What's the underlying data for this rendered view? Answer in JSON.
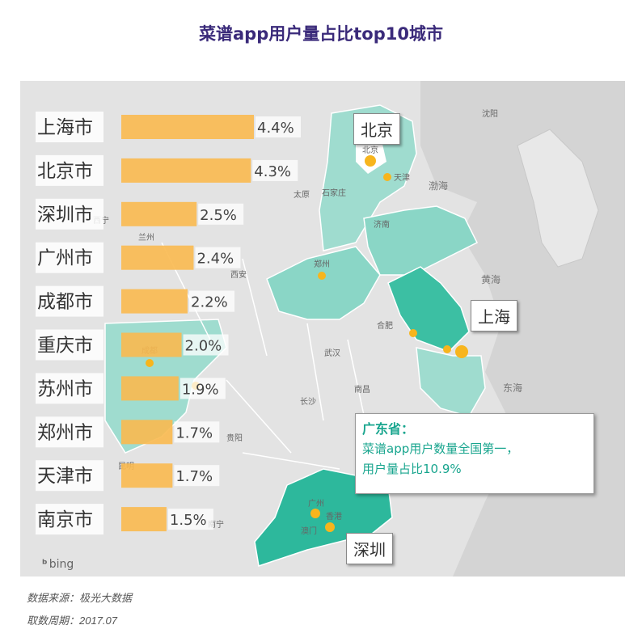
{
  "title": "菜谱app用户量占比top10城市",
  "chart_data": {
    "type": "bar",
    "orientation": "horizontal",
    "title": "菜谱app用户量占比top10城市",
    "categories": [
      "上海市",
      "北京市",
      "深圳市",
      "广州市",
      "成都市",
      "重庆市",
      "苏州市",
      "郑州市",
      "天津市",
      "南京市"
    ],
    "values": [
      4.4,
      4.3,
      2.5,
      2.4,
      2.2,
      2.0,
      1.9,
      1.7,
      1.7,
      1.5
    ],
    "value_labels": [
      "4.4%",
      "4.3%",
      "2.5%",
      "2.4%",
      "2.2%",
      "2.0%",
      "1.9%",
      "1.7%",
      "1.7%",
      "1.5%"
    ],
    "unit": "%",
    "bar_color": "#f9b94f"
  },
  "map": {
    "callouts": {
      "beijing": "北京",
      "shanghai": "上海",
      "shenzhen": "深圳"
    },
    "labels": {
      "beijing_small": "北京",
      "tianjin": "天津",
      "shijiazhuang": "石家庄",
      "taiyuan": "太原",
      "jinan": "济南",
      "zhengzhou": "郑州",
      "hefei": "合肥",
      "wuhan": "武汉",
      "nanchang": "南昌",
      "changsha": "长沙",
      "nanning": "南宁",
      "guangzhou": "广州",
      "xianggang": "香港",
      "aomen": "澳门",
      "xian": "西安",
      "lanzhou": "兰州",
      "xining": "西宁",
      "chengdu": "成都",
      "guiyang": "贵阳",
      "kunming": "昆明",
      "shenyang": "沈阳",
      "bohai": "渤海",
      "huanghai": "黄海",
      "donghai": "东海"
    },
    "region_color": "#7fd3c2",
    "highlight_color": "#2db89c",
    "dot_color": "#f7b51d",
    "attribution": "bing"
  },
  "info": {
    "heading": "广东省：",
    "line1": "菜谱app用户数量全国第一，",
    "line2": "用户量占比10.9%"
  },
  "footer": {
    "source": "数据来源：极光大数据",
    "period": "取数周期：2017.07"
  }
}
